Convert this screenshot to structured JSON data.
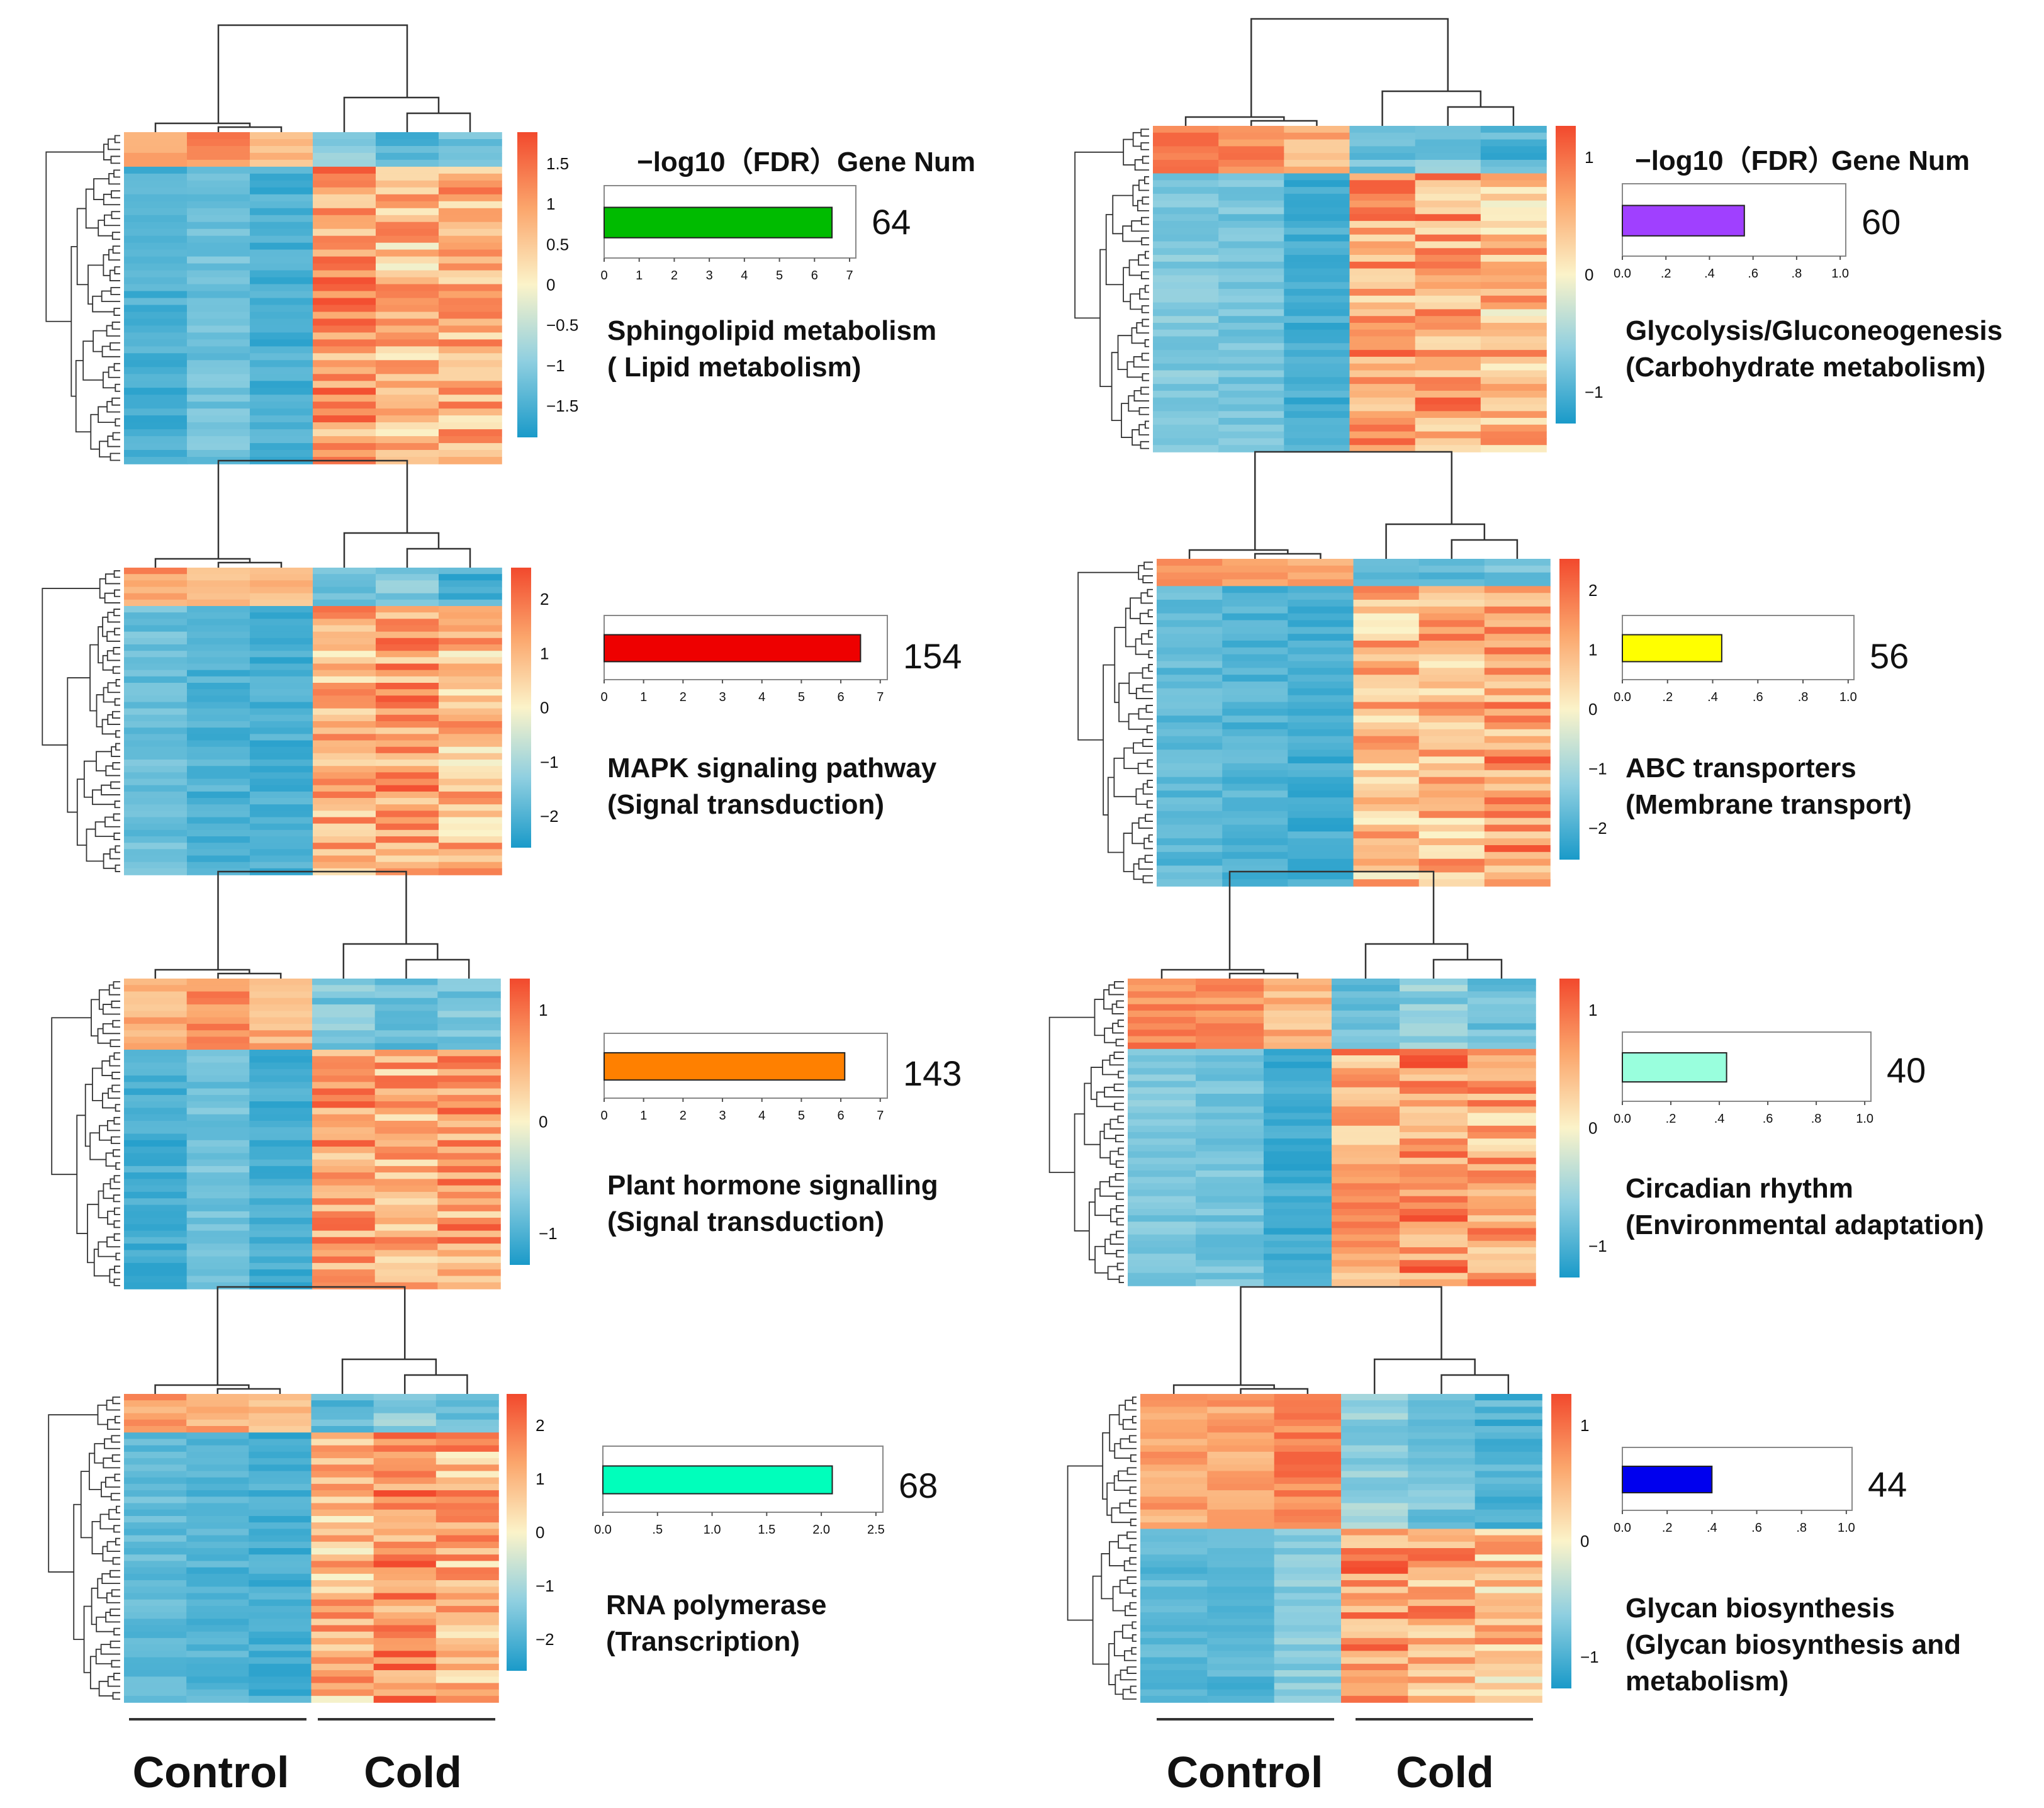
{
  "groups": {
    "control": "Control",
    "cold": "Cold"
  },
  "header": {
    "fdr": "−log10（FDR）",
    "gene_num": "Gene Num"
  },
  "colors": {
    "low": "#1a9ac9",
    "mid": "#fbf3c9",
    "high": "#f2492d"
  },
  "chart_data": [
    {
      "type": "heatmap",
      "id": "sphingo",
      "pathway": "Sphingolipid metabolism",
      "category": "( Lipid metabolism)",
      "gene_num": "64",
      "fdr_value": 6.5,
      "bar_color": "#00bb00",
      "xlim": [
        0,
        7
      ],
      "ticks": [
        "0",
        "1",
        "2",
        "3",
        "4",
        "5",
        "6",
        "7"
      ],
      "scale_ticks": [
        "1.5",
        "1",
        "0.5",
        "0",
        "−0.5",
        "−1",
        "−1.5"
      ],
      "columns": [
        "Control",
        "Control",
        "Control",
        "Cold",
        "Cold",
        "Cold"
      ]
    },
    {
      "type": "heatmap",
      "id": "mapk",
      "pathway": "MAPK signaling pathway",
      "category": "(Signal transduction)",
      "gene_num": "154",
      "fdr_value": 6.5,
      "bar_color": "#ee0000",
      "xlim": [
        0,
        7
      ],
      "ticks": [
        "0",
        "1",
        "2",
        "3",
        "4",
        "5",
        "6",
        "7"
      ],
      "scale_ticks": [
        "2",
        "1",
        "0",
        "−1",
        "−2"
      ],
      "columns": [
        "Control",
        "Control",
        "Control",
        "Cold",
        "Cold",
        "Cold"
      ]
    },
    {
      "type": "heatmap",
      "id": "hormone",
      "pathway": "Plant hormone signalling",
      "category": " (Signal transduction)",
      "gene_num": "143",
      "fdr_value": 6.1,
      "bar_color": "#ff8000",
      "xlim": [
        0,
        7
      ],
      "ticks": [
        "0",
        "1",
        "2",
        "3",
        "4",
        "5",
        "6",
        "7"
      ],
      "scale_ticks": [
        "1",
        "0",
        "−1"
      ],
      "columns": [
        "Control",
        "Control",
        "Control",
        "Cold",
        "Cold",
        "Cold"
      ]
    },
    {
      "type": "heatmap",
      "id": "rnapol",
      "pathway": "RNA polymerase",
      "category": "(Transcription)",
      "gene_num": "68",
      "fdr_value": 2.1,
      "bar_color": "#00ffbb",
      "xlim": [
        0,
        2.5
      ],
      "ticks": [
        "0.0",
        ".5",
        "1.0",
        "1.5",
        "2.0",
        "2.5"
      ],
      "scale_ticks": [
        "2",
        "1",
        "0",
        "−1",
        "−2"
      ],
      "columns": [
        "Control",
        "Control",
        "Control",
        "Cold",
        "Cold",
        "Cold"
      ]
    },
    {
      "type": "heatmap",
      "id": "glyco",
      "pathway": "Glycolysis/Gluconeogenesis",
      "category": "(Carbohydrate metabolism)",
      "gene_num": "60",
      "fdr_value": 0.56,
      "bar_color": "#a040ff",
      "xlim": [
        0,
        1
      ],
      "ticks": [
        "0.0",
        ".2",
        ".4",
        ".6",
        ".8",
        "1.0"
      ],
      "scale_ticks": [
        "1",
        "0",
        "−1"
      ],
      "columns": [
        "Control",
        "Control",
        "Control",
        "Cold",
        "Cold",
        "Cold"
      ]
    },
    {
      "type": "heatmap",
      "id": "abc",
      "pathway": "ABC transporters",
      "category": "(Membrane transport)",
      "gene_num": "56",
      "fdr_value": 0.44,
      "bar_color": "#ffff00",
      "xlim": [
        0,
        1
      ],
      "ticks": [
        "0.0",
        ".2",
        ".4",
        ".6",
        ".8",
        "1.0"
      ],
      "scale_ticks": [
        "2",
        "1",
        "0",
        "−1",
        "−2"
      ],
      "columns": [
        "Control",
        "Control",
        "Control",
        "Cold",
        "Cold",
        "Cold"
      ]
    },
    {
      "type": "heatmap",
      "id": "circadian",
      "pathway": "Circadian rhythm",
      "category": "(Environmental adaptation)",
      "gene_num": "40",
      "fdr_value": 0.43,
      "bar_color": "#99ffdd",
      "xlim": [
        0,
        1
      ],
      "ticks": [
        "0.0",
        ".2",
        ".4",
        ".6",
        ".8",
        "1.0"
      ],
      "scale_ticks": [
        "1",
        "0",
        "−1"
      ],
      "columns": [
        "Control",
        "Control",
        "Control",
        "Cold",
        "Cold",
        "Cold"
      ]
    },
    {
      "type": "heatmap",
      "id": "glycan",
      "pathway": "Glycan biosynthesis",
      "category": "(Glycan biosynthesis and",
      "category2": " metabolism)",
      "gene_num": "44",
      "fdr_value": 0.4,
      "bar_color": "#0000ee",
      "xlim": [
        0,
        1
      ],
      "ticks": [
        "0.0",
        ".2",
        ".4",
        ".6",
        ".8",
        "1.0"
      ],
      "scale_ticks": [
        "1",
        "0",
        "−1"
      ],
      "columns": [
        "Control",
        "Control",
        "Control",
        "Cold",
        "Cold",
        "Cold"
      ]
    }
  ]
}
